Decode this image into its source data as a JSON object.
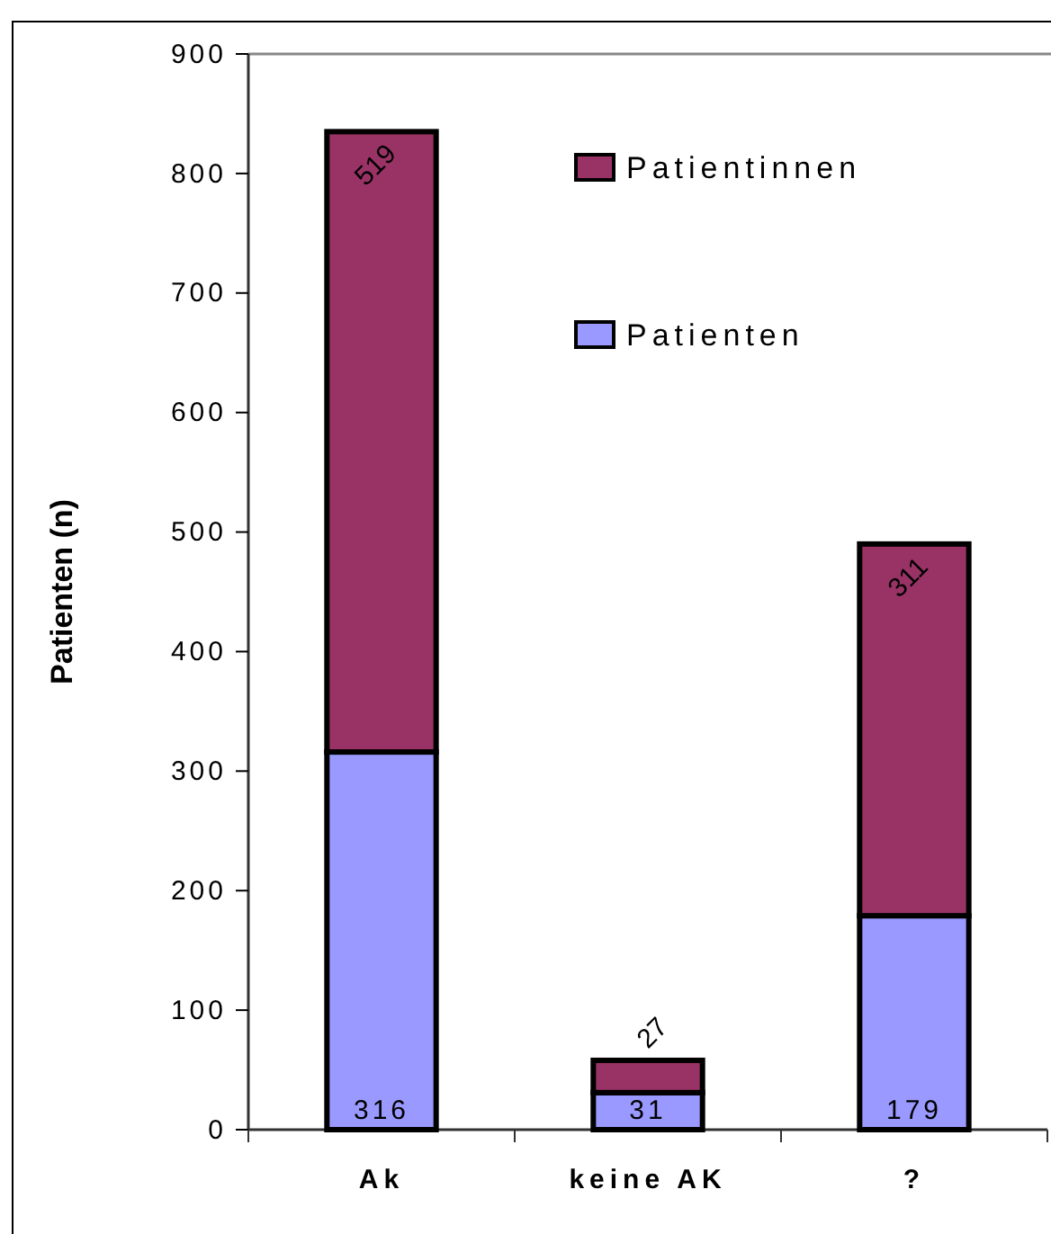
{
  "chart_data": {
    "type": "bar",
    "stacked": true,
    "ylabel": "Patienten (n)",
    "categories": [
      "Ak",
      "keine AK",
      "?"
    ],
    "series": [
      {
        "name": "Patienten",
        "color": "#9999ff",
        "values": [
          316,
          31,
          179
        ]
      },
      {
        "name": "Patientinnen",
        "color": "#993366",
        "values": [
          519,
          27,
          311
        ]
      }
    ],
    "ylim": [
      0,
      900
    ],
    "yticks": [
      0,
      100,
      200,
      300,
      400,
      500,
      600,
      700,
      800,
      900
    ],
    "grid": false,
    "legend": "top right",
    "data_labels": true
  }
}
